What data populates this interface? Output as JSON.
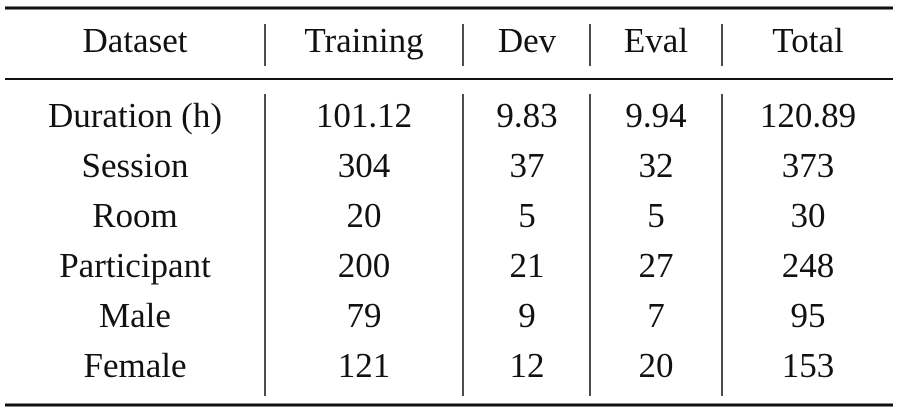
{
  "table": {
    "header": [
      "Dataset",
      "Training",
      "Dev",
      "Eval",
      "Total"
    ],
    "rows": [
      [
        "Duration (h)",
        "101.12",
        "9.83",
        "9.94",
        "120.89"
      ],
      [
        "Session",
        "304",
        "37",
        "32",
        "373"
      ],
      [
        "Room",
        "20",
        "5",
        "5",
        "30"
      ],
      [
        "Participant",
        "200",
        "21",
        "27",
        "248"
      ],
      [
        "Male",
        "79",
        "9",
        "7",
        "95"
      ],
      [
        "Female",
        "121",
        "12",
        "20",
        "153"
      ]
    ]
  }
}
